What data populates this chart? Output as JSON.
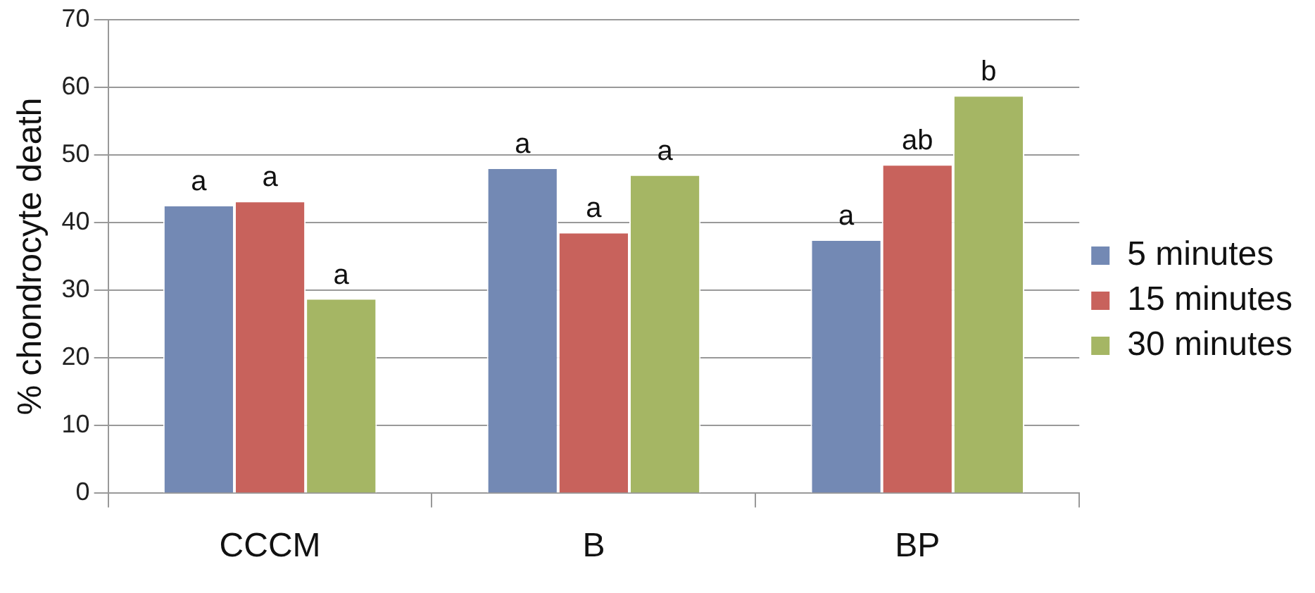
{
  "chart_data": {
    "type": "bar",
    "ylabel": "% chondrocyte death",
    "categories": [
      "CCCM",
      "B",
      "BP"
    ],
    "series": [
      {
        "name": "5 minutes",
        "color": "#7389b4",
        "values": [
          42.6,
          48.1,
          37.5
        ],
        "value_labels": [
          "a",
          "a",
          "a"
        ]
      },
      {
        "name": "15 minutes",
        "color": "#c8625c",
        "values": [
          43.2,
          38.6,
          48.6
        ],
        "value_labels": [
          "a",
          "a",
          "ab"
        ]
      },
      {
        "name": "30 minutes",
        "color": "#a5b664",
        "values": [
          28.8,
          47.1,
          58.8
        ],
        "value_labels": [
          "a",
          "a",
          "b"
        ]
      }
    ],
    "ylim": [
      0,
      70
    ],
    "yticks": [
      0,
      10,
      20,
      30,
      40,
      50,
      60,
      70
    ],
    "grid": "y",
    "legend": "right"
  }
}
